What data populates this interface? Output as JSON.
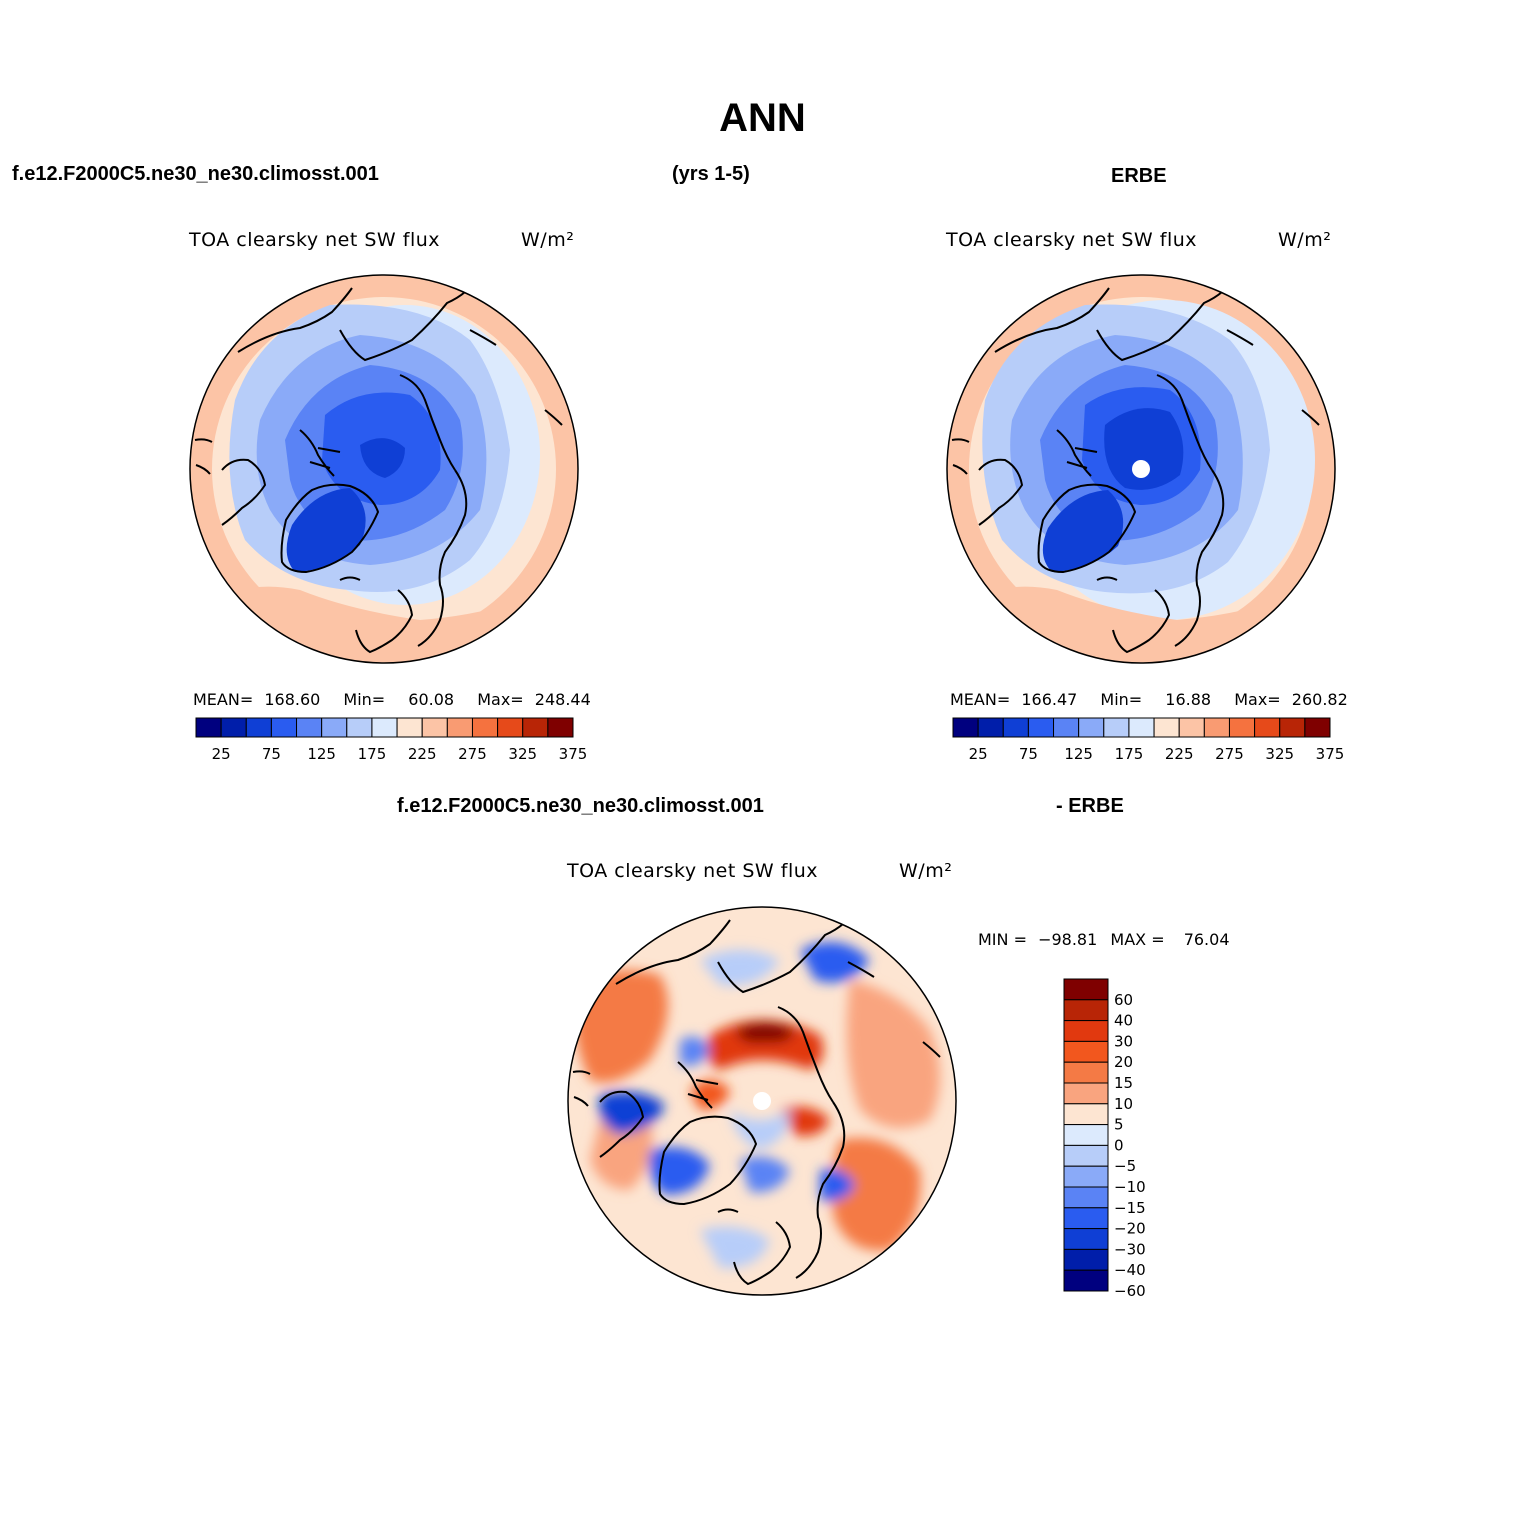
{
  "figure": {
    "title": "ANN",
    "case_name": "f.e12.F2000C5.ne30_ne30.climosst.001",
    "period": "(yrs 1-5)",
    "obs_name": "ERBE",
    "diff_case_name": "f.e12.F2000C5.ne30_ne30.climosst.001",
    "diff_obs_name": "- ERBE"
  },
  "panels": [
    {
      "id": "model",
      "variable": "TOA clearsky net SW flux",
      "units": "W/m²",
      "stats": {
        "mean_label": "MEAN=",
        "mean": "168.60",
        "min_label": "Min=",
        "min": "60.08",
        "max_label": "Max=",
        "max": "248.44"
      }
    },
    {
      "id": "obs",
      "variable": "TOA clearsky net SW flux",
      "units": "W/m²",
      "stats": {
        "mean_label": "MEAN=",
        "mean": "166.47",
        "min_label": "Min=",
        "min": "16.88",
        "max_label": "Max=",
        "max": "260.82"
      }
    },
    {
      "id": "diff",
      "variable": "TOA clearsky net SW flux",
      "units": "W/m²",
      "stats": {
        "min_label": "MIN =",
        "min": "−98.81",
        "max_label": "MAX =",
        "max": "76.04"
      }
    }
  ],
  "colorbar_abs": {
    "colors": [
      "#00007f",
      "#001eaa",
      "#0f3fd5",
      "#2a5cf0",
      "#5a83f5",
      "#8aaaf8",
      "#b7cdf9",
      "#dceafd",
      "#fde5d2",
      "#fcc4a6",
      "#f99b72",
      "#f5723f",
      "#e64a1a",
      "#b82506",
      "#7f0000"
    ],
    "labels": [
      "25",
      "75",
      "125",
      "175",
      "225",
      "275",
      "325",
      "375"
    ]
  },
  "colorbar_diff": {
    "colors": [
      "#7f0000",
      "#b82506",
      "#e1390f",
      "#f2571e",
      "#f47a45",
      "#f9a47f",
      "#fde5d2",
      "#dceafd",
      "#b7cdf9",
      "#8aaaf8",
      "#5a83f5",
      "#2a5cf0",
      "#0f3fd5",
      "#001eaa",
      "#00007f"
    ],
    "labels": [
      "60",
      "40",
      "30",
      "20",
      "15",
      "10",
      "5",
      "0",
      "−5",
      "−10",
      "−15",
      "−20",
      "−30",
      "−40",
      "−60"
    ]
  }
}
